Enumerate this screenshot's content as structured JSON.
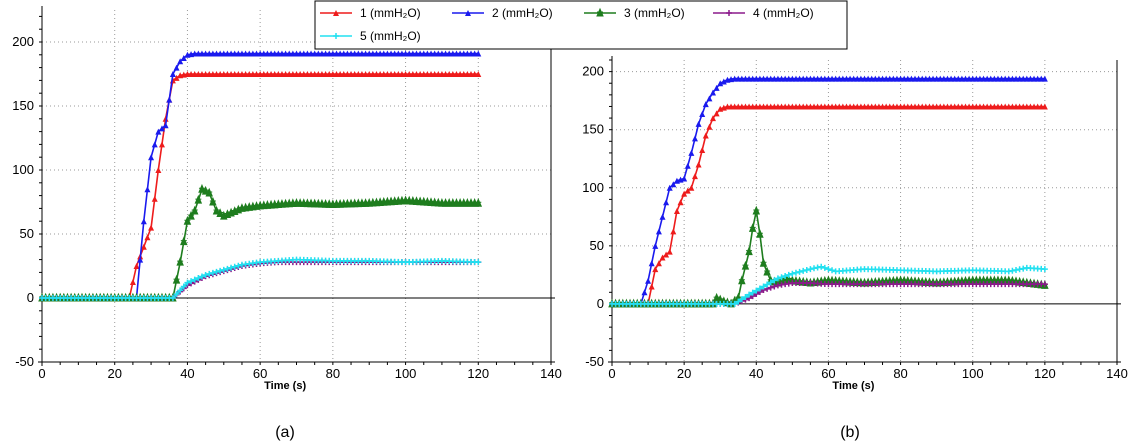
{
  "legend": [
    {
      "label": "1 (mmH₂O)",
      "color": "#ee1c1c"
    },
    {
      "label": "2 (mmH₂O)",
      "color": "#1a1aee"
    },
    {
      "label": "3 (mmH₂O)",
      "color": "#1e7d1e"
    },
    {
      "label": "4 (mmH₂O)",
      "color": "#8b1a8b"
    },
    {
      "label": "5 (mmH₂O)",
      "color": "#22e0f0"
    }
  ],
  "chart_data": [
    {
      "type": "line",
      "caption": "(a)",
      "xlabel": "Time (s)",
      "ylabel": "",
      "xlim": [
        0,
        140
      ],
      "ylim": [
        -50,
        225
      ],
      "xticks": [
        0,
        20,
        40,
        60,
        80,
        100,
        120,
        140
      ],
      "yticks": [
        -50,
        0,
        50,
        100,
        150,
        200
      ],
      "grid": true,
      "series": [
        {
          "name": "1 (mmH₂O)",
          "color": "#ee1c1c",
          "x": [
            0,
            20,
            24,
            26,
            28,
            30,
            32,
            34,
            36,
            38,
            40,
            120
          ],
          "y": [
            0,
            0,
            0,
            25,
            40,
            55,
            100,
            140,
            170,
            174,
            175,
            175
          ]
        },
        {
          "name": "2 (mmH₂O)",
          "color": "#1a1aee",
          "x": [
            0,
            24,
            26,
            28,
            30,
            32,
            34,
            36,
            38,
            40,
            42,
            120
          ],
          "y": [
            0,
            0,
            0,
            60,
            110,
            130,
            135,
            175,
            185,
            190,
            191,
            191
          ]
        },
        {
          "name": "3 (mmH₂O)",
          "color": "#1e7d1e",
          "x": [
            0,
            36,
            38,
            40,
            42,
            44,
            46,
            48,
            50,
            55,
            60,
            70,
            80,
            90,
            100,
            110,
            120
          ],
          "y": [
            0,
            0,
            28,
            60,
            68,
            85,
            82,
            68,
            64,
            70,
            72,
            74,
            73,
            74,
            76,
            74,
            74
          ]
        },
        {
          "name": "4 (mmH₂O)",
          "color": "#8b1a8b",
          "x": [
            0,
            36,
            40,
            45,
            50,
            55,
            60,
            65,
            70,
            80,
            90,
            100,
            110,
            120
          ],
          "y": [
            0,
            0,
            10,
            17,
            21,
            25,
            27,
            28,
            28,
            28,
            28,
            28,
            28,
            28
          ]
        },
        {
          "name": "5 (mmH₂O)",
          "color": "#22e0f0",
          "x": [
            0,
            36,
            40,
            45,
            50,
            55,
            60,
            65,
            70,
            80,
            90,
            100,
            110,
            120
          ],
          "y": [
            0,
            0,
            12,
            18,
            22,
            26,
            28,
            29,
            30,
            29,
            29,
            28,
            29,
            28
          ]
        }
      ]
    },
    {
      "type": "line",
      "caption": "(b)",
      "xlabel": "Time (s)",
      "ylabel": "",
      "xlim": [
        0,
        140
      ],
      "ylim": [
        -50,
        210
      ],
      "xticks": [
        0,
        20,
        40,
        60,
        80,
        100,
        120,
        140
      ],
      "yticks": [
        -50,
        0,
        50,
        100,
        150,
        200
      ],
      "grid": true,
      "series": [
        {
          "name": "1 (mmH₂O)",
          "color": "#ee1c1c",
          "x": [
            0,
            10,
            12,
            14,
            16,
            18,
            20,
            22,
            24,
            26,
            28,
            30,
            32,
            120
          ],
          "y": [
            0,
            0,
            30,
            40,
            45,
            80,
            95,
            100,
            120,
            145,
            160,
            168,
            170,
            170
          ]
        },
        {
          "name": "2 (mmH₂O)",
          "color": "#1a1aee",
          "x": [
            0,
            8,
            10,
            12,
            14,
            16,
            18,
            20,
            22,
            24,
            26,
            28,
            30,
            32,
            34,
            120
          ],
          "y": [
            0,
            0,
            20,
            50,
            75,
            100,
            106,
            108,
            130,
            155,
            172,
            182,
            190,
            193,
            194,
            194
          ]
        },
        {
          "name": "3 (mmH₂O)",
          "color": "#1e7d1e",
          "x": [
            0,
            28,
            29,
            31,
            33,
            35,
            36,
            38,
            39,
            40,
            41,
            42,
            44,
            46,
            48,
            50,
            55,
            60,
            70,
            80,
            90,
            100,
            110,
            120
          ],
          "y": [
            0,
            0,
            5,
            2,
            0,
            5,
            20,
            45,
            65,
            80,
            60,
            35,
            20,
            18,
            22,
            20,
            18,
            20,
            18,
            20,
            18,
            20,
            20,
            16
          ]
        },
        {
          "name": "4 (mmH₂O)",
          "color": "#8b1a8b",
          "x": [
            0,
            34,
            38,
            42,
            46,
            50,
            55,
            60,
            70,
            80,
            90,
            100,
            110,
            120
          ],
          "y": [
            0,
            0,
            5,
            12,
            16,
            18,
            18,
            17,
            17,
            17,
            17,
            17,
            17,
            17
          ]
        },
        {
          "name": "5 (mmH₂O)",
          "color": "#22e0f0",
          "x": [
            0,
            34,
            38,
            42,
            46,
            50,
            55,
            58,
            62,
            70,
            80,
            90,
            100,
            110,
            115,
            120
          ],
          "y": [
            0,
            0,
            8,
            15,
            22,
            26,
            30,
            32,
            28,
            30,
            29,
            28,
            29,
            28,
            31,
            30
          ]
        }
      ]
    }
  ]
}
